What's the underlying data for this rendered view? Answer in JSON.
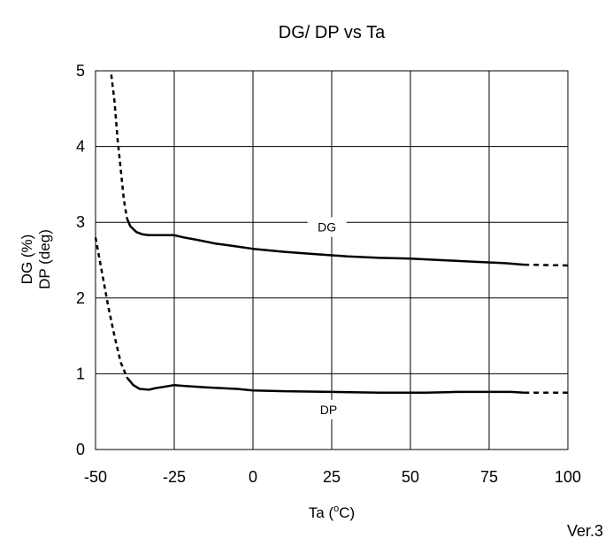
{
  "chart_data": {
    "type": "line",
    "title": "DG/ DP vs Ta",
    "xlabel": {
      "pre": "Ta (",
      "sup": "o",
      "post": "C)"
    },
    "ylabel_lines": [
      "DG (%)",
      "DP (deg)"
    ],
    "xlim": [
      -50,
      100
    ],
    "ylim": [
      0,
      5
    ],
    "xticks": [
      -50,
      -25,
      0,
      25,
      50,
      75,
      100
    ],
    "yticks": [
      0,
      1,
      2,
      3,
      4,
      5
    ],
    "grid": true,
    "series": [
      {
        "name": "DG",
        "dashed_low": [
          [
            -45,
            4.95
          ],
          [
            -44,
            4.6
          ],
          [
            -43,
            4.1
          ],
          [
            -42,
            3.7
          ],
          [
            -41,
            3.3
          ],
          [
            -40,
            3.05
          ]
        ],
        "solid": [
          [
            -40,
            3.05
          ],
          [
            -39,
            2.95
          ],
          [
            -37,
            2.87
          ],
          [
            -35,
            2.84
          ],
          [
            -33,
            2.83
          ],
          [
            -30,
            2.83
          ],
          [
            -25,
            2.83
          ],
          [
            -22,
            2.8
          ],
          [
            -18,
            2.77
          ],
          [
            -12,
            2.72
          ],
          [
            -5,
            2.68
          ],
          [
            0,
            2.65
          ],
          [
            10,
            2.61
          ],
          [
            20,
            2.58
          ],
          [
            30,
            2.55
          ],
          [
            40,
            2.53
          ],
          [
            50,
            2.52
          ],
          [
            60,
            2.5
          ],
          [
            70,
            2.48
          ],
          [
            80,
            2.46
          ],
          [
            86,
            2.44
          ]
        ],
        "dashed_high": [
          [
            86,
            2.44
          ],
          [
            100,
            2.43
          ]
        ]
      },
      {
        "name": "DP",
        "dashed_low": [
          [
            -50,
            2.8
          ],
          [
            -48,
            2.35
          ],
          [
            -46,
            1.9
          ],
          [
            -44,
            1.5
          ],
          [
            -42,
            1.15
          ],
          [
            -40,
            0.95
          ]
        ],
        "solid": [
          [
            -40,
            0.95
          ],
          [
            -38,
            0.85
          ],
          [
            -36,
            0.8
          ],
          [
            -33,
            0.79
          ],
          [
            -31,
            0.81
          ],
          [
            -28,
            0.83
          ],
          [
            -25,
            0.85
          ],
          [
            -22,
            0.84
          ],
          [
            -15,
            0.82
          ],
          [
            -5,
            0.8
          ],
          [
            0,
            0.78
          ],
          [
            10,
            0.77
          ],
          [
            25,
            0.76
          ],
          [
            40,
            0.75
          ],
          [
            55,
            0.75
          ],
          [
            65,
            0.76
          ],
          [
            75,
            0.76
          ],
          [
            82,
            0.76
          ],
          [
            86,
            0.75
          ]
        ],
        "dashed_high": [
          [
            86,
            0.75
          ],
          [
            100,
            0.75
          ]
        ]
      }
    ],
    "annotations": [
      {
        "text": "DG",
        "x": 23.5,
        "y": 2.89
      },
      {
        "text": "DP",
        "x": 24,
        "y": 0.48
      }
    ]
  },
  "footer": {
    "version": "Ver.3"
  }
}
